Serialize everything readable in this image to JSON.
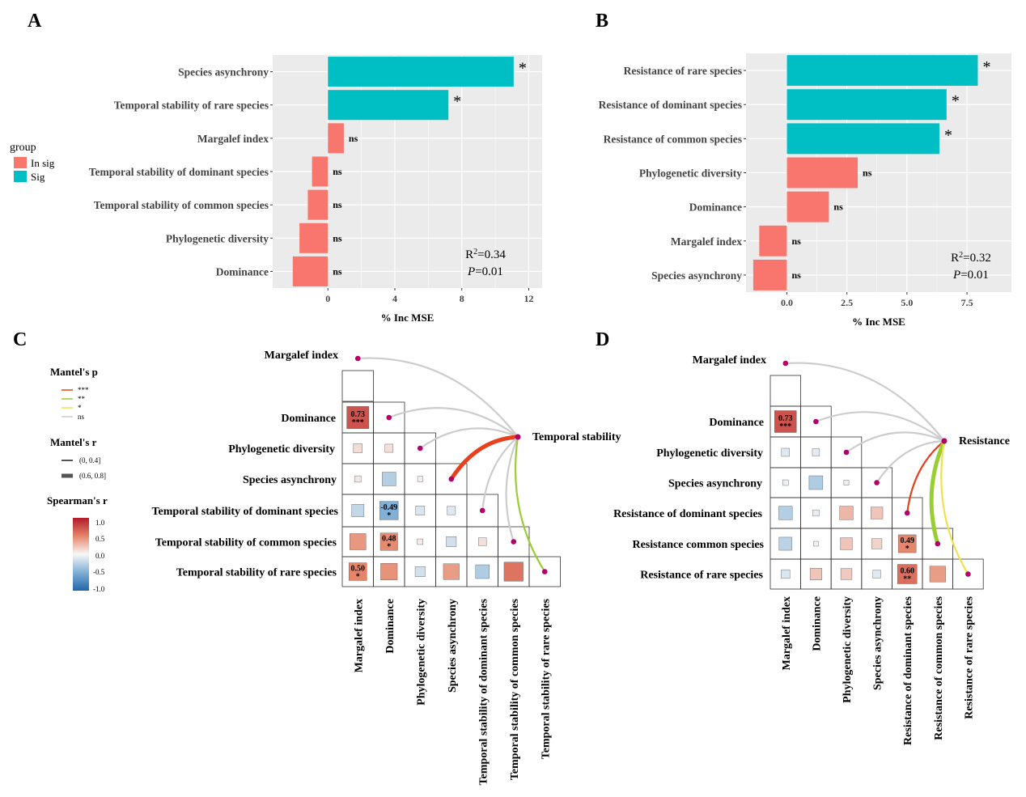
{
  "colors": {
    "sig": "#00BFC4",
    "insig": "#F8766D",
    "panel_bg": "#EBEBEB",
    "grid": "#FFFFFF",
    "p_high": "#E8401C",
    "p_mid": "#9ACD32",
    "p_low": "#F0E050",
    "p_ns": "#CCCCCC",
    "node": "#B3006B"
  },
  "legend_group": {
    "title": "group",
    "items": [
      {
        "label": "In sig",
        "color": "#F8766D"
      },
      {
        "label": "Sig",
        "color": "#00BFC4"
      }
    ]
  },
  "legend_mantel": {
    "p_title": "Mantel's p",
    "p_items": [
      {
        "label": "***",
        "color": "#E8401C"
      },
      {
        "label": "**",
        "color": "#9ACD32"
      },
      {
        "label": "*",
        "color": "#F0E050"
      },
      {
        "label": "ns",
        "color": "#CCCCCC"
      }
    ],
    "r_title": "Mantel's r",
    "r_items": [
      {
        "label": "(0, 0.4]",
        "width": 2
      },
      {
        "label": "(0.6, 0.8]",
        "width": 5
      }
    ],
    "s_title": "Spearman's r",
    "s_ticks": [
      "1.0",
      "0.5",
      "0.0",
      "-0.5",
      "-1.0"
    ]
  },
  "chart_data": [
    {
      "panel": "A",
      "type": "bar",
      "orientation": "horizontal",
      "xlabel": "% Inc MSE",
      "xlim": [
        -3.3,
        12.8
      ],
      "xticks": [
        0,
        4,
        8,
        12
      ],
      "categories": [
        "Species asynchrony",
        "Temporal stability of rare species",
        "Margalef index",
        "Temporal stability of dominant species",
        "Temporal stability of common species",
        "Phylogenetic diversity",
        "Dominance"
      ],
      "values": [
        11.1,
        7.2,
        0.95,
        -0.95,
        -1.2,
        -1.7,
        -2.1
      ],
      "groups": [
        "Sig",
        "Sig",
        "In sig",
        "In sig",
        "In sig",
        "In sig",
        "In sig"
      ],
      "labels": [
        "*",
        "*",
        "ns",
        "ns",
        "ns",
        "ns",
        "ns"
      ],
      "annotation": {
        "r2_prefix": "R",
        "r2_sup": "2",
        "r2_value": "=0.34",
        "p_italic": "P",
        "p_value": "=0.01"
      }
    },
    {
      "panel": "B",
      "type": "bar",
      "orientation": "horizontal",
      "xlabel": "% Inc MSE",
      "xlim": [
        -1.7,
        9.35
      ],
      "xticks": [
        0,
        2.5,
        5,
        7.5
      ],
      "xtick_labels": [
        "0.0",
        "2.5",
        "5.0",
        "7.5"
      ],
      "categories": [
        "Resistance of rare species",
        "Resistance of dominant species",
        "Resistance of common species",
        "Phylogenetic diversity",
        "Dominance",
        "Margalef index",
        "Species asynchrony"
      ],
      "values": [
        7.95,
        6.65,
        6.35,
        2.95,
        1.75,
        -1.15,
        -1.4
      ],
      "groups": [
        "Sig",
        "Sig",
        "Sig",
        "In sig",
        "In sig",
        "In sig",
        "In sig"
      ],
      "labels": [
        "*",
        "*",
        "*",
        "ns",
        "ns",
        "ns",
        "ns"
      ],
      "annotation": {
        "r2_prefix": "R",
        "r2_sup": "2",
        "r2_value": "=0.32",
        "p_italic": "P",
        "p_value": "=0.01"
      }
    },
    {
      "panel": "C",
      "type": "heatmap",
      "variables": [
        "Margalef index",
        "Dominance",
        "Phylogenetic diversity",
        "Species asynchrony",
        "Temporal stability of dominant species",
        "Temporal stability of common species",
        "Temporal stability of rare species"
      ],
      "target": "Temporal stability",
      "cells": [
        {
          "row": 1,
          "col": 0,
          "r": 0.73,
          "label": "0.73",
          "sig": "***"
        },
        {
          "row": 2,
          "col": 0,
          "r": 0.12
        },
        {
          "row": 2,
          "col": 1,
          "r": 0.1
        },
        {
          "row": 3,
          "col": 0,
          "r": 0.06
        },
        {
          "row": 3,
          "col": 1,
          "r": -0.28
        },
        {
          "row": 3,
          "col": 2,
          "r": 0.04
        },
        {
          "row": 4,
          "col": 0,
          "r": -0.22
        },
        {
          "row": 4,
          "col": 1,
          "r": -0.49,
          "label": "-0.49",
          "sig": "*"
        },
        {
          "row": 4,
          "col": 2,
          "r": -0.12
        },
        {
          "row": 4,
          "col": 3,
          "r": -0.1
        },
        {
          "row": 5,
          "col": 0,
          "r": 0.42
        },
        {
          "row": 5,
          "col": 1,
          "r": 0.48,
          "label": "0.48",
          "sig": "*"
        },
        {
          "row": 5,
          "col": 2,
          "r": 0.05
        },
        {
          "row": 5,
          "col": 3,
          "r": -0.16
        },
        {
          "row": 5,
          "col": 4,
          "r": 0.1
        },
        {
          "row": 6,
          "col": 0,
          "r": 0.5,
          "label": "0.50",
          "sig": "*"
        },
        {
          "row": 6,
          "col": 1,
          "r": 0.44
        },
        {
          "row": 6,
          "col": 2,
          "r": -0.16
        },
        {
          "row": 6,
          "col": 3,
          "r": 0.4
        },
        {
          "row": 6,
          "col": 4,
          "r": -0.3
        },
        {
          "row": 6,
          "col": 5,
          "r": 0.58
        }
      ],
      "mantel": [
        {
          "var": 0,
          "p": "ns",
          "r": "(0, 0.4]"
        },
        {
          "var": 1,
          "p": "ns",
          "r": "(0, 0.4]"
        },
        {
          "var": 2,
          "p": "ns",
          "r": "(0, 0.4]"
        },
        {
          "var": 3,
          "p": "***",
          "r": "(0.6, 0.8]"
        },
        {
          "var": 4,
          "p": "ns",
          "r": "(0, 0.4]"
        },
        {
          "var": 5,
          "p": "ns",
          "r": "(0, 0.4]"
        },
        {
          "var": 6,
          "p": "**",
          "r": "(0, 0.4]"
        }
      ]
    },
    {
      "panel": "D",
      "type": "heatmap",
      "variables": [
        "Margalef index",
        "Dominance",
        "Phylogenetic diversity",
        "Species asynchrony",
        "Resistance of dominant species",
        "Resistance of common species",
        "Resistance of rare species"
      ],
      "row_labels": [
        "Margalef index",
        "Dominance",
        "Phylogenetic diversity",
        "Species asynchrony",
        "Resistance of dominant species",
        "Resistance common species",
        "Resistance of rare species"
      ],
      "target": "Resistance",
      "cells": [
        {
          "row": 1,
          "col": 0,
          "r": 0.73,
          "label": "0.73",
          "sig": "***"
        },
        {
          "row": 2,
          "col": 0,
          "r": -0.1
        },
        {
          "row": 2,
          "col": 1,
          "r": -0.08
        },
        {
          "row": 3,
          "col": 0,
          "r": -0.05
        },
        {
          "row": 3,
          "col": 1,
          "r": -0.3
        },
        {
          "row": 3,
          "col": 2,
          "r": -0.04
        },
        {
          "row": 4,
          "col": 0,
          "r": -0.28
        },
        {
          "row": 4,
          "col": 1,
          "r": -0.06
        },
        {
          "row": 4,
          "col": 2,
          "r": 0.28
        },
        {
          "row": 4,
          "col": 3,
          "r": 0.22
        },
        {
          "row": 5,
          "col": 0,
          "r": -0.26
        },
        {
          "row": 5,
          "col": 1,
          "r": -0.03
        },
        {
          "row": 5,
          "col": 2,
          "r": 0.22
        },
        {
          "row": 5,
          "col": 3,
          "r": 0.16
        },
        {
          "row": 5,
          "col": 4,
          "r": 0.49,
          "label": "0.49",
          "sig": "*"
        },
        {
          "row": 6,
          "col": 0,
          "r": -0.12
        },
        {
          "row": 6,
          "col": 1,
          "r": 0.22
        },
        {
          "row": 6,
          "col": 2,
          "r": 0.2
        },
        {
          "row": 6,
          "col": 3,
          "r": -0.1
        },
        {
          "row": 6,
          "col": 4,
          "r": 0.6,
          "label": "0.60",
          "sig": "**"
        },
        {
          "row": 6,
          "col": 5,
          "r": 0.4
        }
      ],
      "mantel": [
        {
          "var": 0,
          "p": "ns",
          "r": "(0, 0.4]"
        },
        {
          "var": 1,
          "p": "ns",
          "r": "(0, 0.4]"
        },
        {
          "var": 2,
          "p": "ns",
          "r": "(0, 0.4]"
        },
        {
          "var": 3,
          "p": "ns",
          "r": "(0, 0.4]"
        },
        {
          "var": 4,
          "p": "***",
          "r": "(0, 0.4]"
        },
        {
          "var": 5,
          "p": "**",
          "r": "(0.6, 0.8]"
        },
        {
          "var": 6,
          "p": "*",
          "r": "(0, 0.4]"
        }
      ]
    }
  ]
}
